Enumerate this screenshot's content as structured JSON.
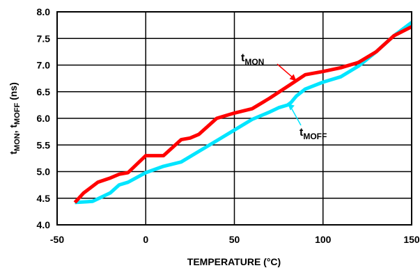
{
  "chart_data": {
    "type": "line",
    "xlabel": "TEMPERATURE (°C)",
    "ylabel": {
      "t1": "t",
      "sub1": "MON",
      "sep": ", t",
      "sub2": "MOFF",
      "unit": " (ns)"
    },
    "xlim": [
      -50,
      150
    ],
    "ylim": [
      4.0,
      8.0
    ],
    "x_ticks": [
      -50,
      0,
      50,
      100,
      150
    ],
    "x_tick_labels": [
      "-50",
      "0",
      "50",
      "100",
      "150"
    ],
    "y_ticks": [
      4.0,
      4.5,
      5.0,
      5.5,
      6.0,
      6.5,
      7.0,
      7.5,
      8.0
    ],
    "y_tick_labels": [
      "4.0",
      "4.5",
      "5.0",
      "5.5",
      "6.0",
      "6.5",
      "7.0",
      "7.5",
      "8.0"
    ],
    "grid": true,
    "series": [
      {
        "name": "tMON",
        "label_main": "t",
        "label_sub": "MON",
        "color": "#ff0000",
        "x": [
          -40,
          -35,
          -27,
          -20,
          -15,
          -10,
          0,
          10,
          20,
          25,
          30,
          40,
          50,
          60,
          70,
          80,
          90,
          100,
          110,
          120,
          130,
          140,
          150
        ],
        "y": [
          4.42,
          4.6,
          4.8,
          4.88,
          4.95,
          4.98,
          5.3,
          5.3,
          5.6,
          5.63,
          5.7,
          6.0,
          6.1,
          6.18,
          6.38,
          6.6,
          6.82,
          6.88,
          6.95,
          7.05,
          7.25,
          7.55,
          7.72
        ]
      },
      {
        "name": "tMOFF",
        "label_main": "t",
        "label_sub": "MOFF",
        "color": "#00e5ff",
        "x": [
          -40,
          -30,
          -20,
          -15,
          -10,
          0,
          10,
          20,
          30,
          40,
          50,
          60,
          70,
          75,
          80,
          82,
          85,
          90,
          100,
          110,
          120,
          130,
          140,
          150
        ],
        "y": [
          4.42,
          4.44,
          4.6,
          4.75,
          4.8,
          4.98,
          5.1,
          5.18,
          5.38,
          5.58,
          5.78,
          5.98,
          6.12,
          6.2,
          6.25,
          6.3,
          6.42,
          6.55,
          6.68,
          6.78,
          6.98,
          7.25,
          7.55,
          7.8
        ]
      }
    ]
  }
}
